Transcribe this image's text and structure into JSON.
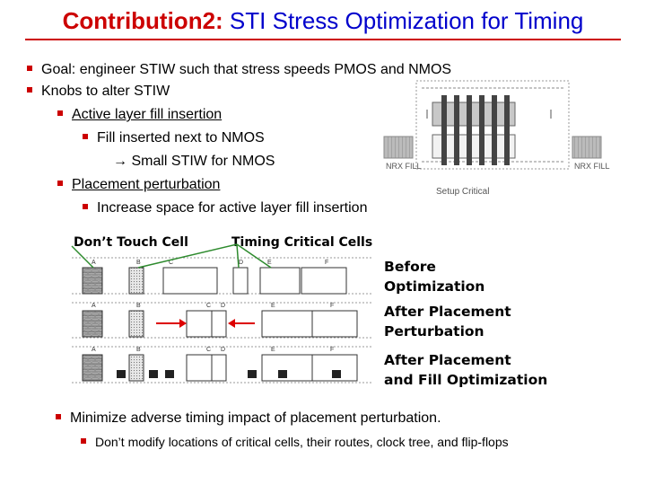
{
  "title": {
    "accent": "Contribution2:",
    "rest": " STI Stress Optimization for Timing"
  },
  "bullets": {
    "goal": "Goal: engineer STIW such that stress speeds PMOS and NMOS",
    "knobs": "Knobs to alter STIW",
    "active_fill": "Active layer fill insertion",
    "fill_nmos": "Fill inserted next to NMOS",
    "small_stiw": "→ Small STIW for NMOS",
    "placement": "Placement perturbation",
    "increase_space": "Increase space for active layer fill insertion",
    "minimize": "Minimize adverse timing impact of placement perturbation.",
    "dont_modify": "Don’t modify locations of critical cells, their routes, clock tree, and flip-flops"
  },
  "top_figure": {
    "left_fill": "NRX FILL",
    "right_fill": "NRX FILL",
    "caption": "Setup Critical"
  },
  "figure_labels": {
    "dont_touch": "Don’t Touch Cell",
    "timing_critical": "Timing Critical Cells"
  },
  "rows": {
    "row1": {
      "line1": "Before",
      "line2": "Optimization",
      "letters": [
        "A",
        "B",
        "C",
        "D",
        "E",
        "F"
      ]
    },
    "row2": {
      "line1": "After Placement",
      "line2": "Perturbation",
      "letters": [
        "A",
        "B",
        "C",
        "D",
        "E",
        "F"
      ]
    },
    "row3": {
      "line1": "After Placement",
      "line2": "and Fill Optimization",
      "letters": [
        "A",
        "B",
        "C",
        "D",
        "E",
        "F"
      ]
    }
  },
  "colors": {
    "title_accent": "#cc0000",
    "title_text": "#0000cc",
    "bullet": "#cc0000",
    "arrow_red": "#dd0000",
    "pointer_green": "#2e8b2e"
  }
}
